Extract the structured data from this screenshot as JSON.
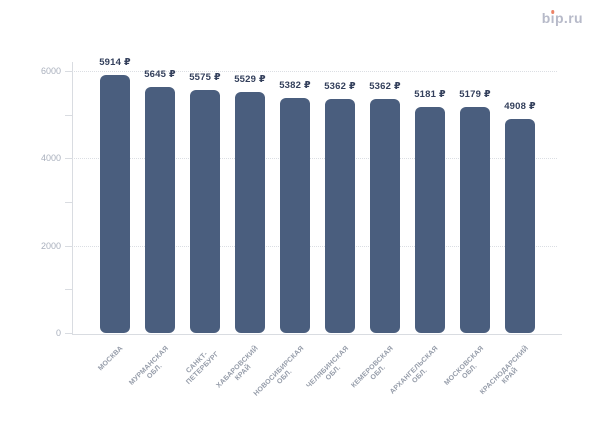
{
  "logo": {
    "text": "bip.ru"
  },
  "chart_data": {
    "type": "bar",
    "title": "",
    "xlabel": "",
    "ylabel": "",
    "unit": "₽",
    "categories": [
      "МОСКВА",
      "МУРМАНСКАЯ ОБЛ.",
      "САНКТ-ПЕТЕРБУРГ",
      "ХАБАРОВСКИЙ КРАЙ",
      "НОВОСИБИРСКАЯ ОБЛ.",
      "ЧЕЛЯБИНСКАЯ ОБЛ.",
      "КЕМЕРОВСКАЯ ОБЛ.",
      "АРХАНГЕЛЬСКАЯ ОБЛ.",
      "МОСКОВСКАЯ ОБЛ.",
      "КРАСНОДАРСКИЙ КРАЙ"
    ],
    "category_lines": [
      [
        "МОСКВА"
      ],
      [
        "МУРМАНСКАЯ",
        "ОБЛ."
      ],
      [
        "САНКТ-",
        "ПЕТЕРБУРГ"
      ],
      [
        "ХАБАРОВСКИЙ",
        "КРАЙ"
      ],
      [
        "НОВОСИБИРСКАЯ",
        "ОБЛ."
      ],
      [
        "ЧЕЛЯБИНСКАЯ",
        "ОБЛ."
      ],
      [
        "КЕМЕРОВСКАЯ",
        "ОБЛ."
      ],
      [
        "АРХАНГЕЛЬСКАЯ",
        "ОБЛ."
      ],
      [
        "МОСКОВСКАЯ",
        "ОБЛ."
      ],
      [
        "КРАСНОДАРСКИЙ",
        "КРАЙ"
      ]
    ],
    "values": [
      5914,
      5645,
      5575,
      5529,
      5382,
      5362,
      5362,
      5181,
      5179,
      4908
    ],
    "value_labels": [
      "5914 ₽",
      "5645 ₽",
      "5575 ₽",
      "5529 ₽",
      "5382 ₽",
      "5362 ₽",
      "5362 ₽",
      "5181 ₽",
      "5179 ₽",
      "4908 ₽"
    ],
    "ylim": [
      0,
      6200
    ],
    "yticks_labeled": [
      0,
      2000,
      4000,
      6000
    ],
    "yticks_minor": [
      1000,
      3000,
      5000
    ],
    "gridlines_at": [
      2000,
      4000,
      6000
    ],
    "grid_style": "dotted horizontal",
    "legend": null,
    "colors": {
      "bar": "#4a5e7e",
      "value_label": "#34405c",
      "y_tick_label": "#a9b0bd",
      "x_category_label": "#959ca9",
      "gridline": "#dbdee3",
      "axis_line": "#d9dce1",
      "logo": "#b7bac9",
      "logo_dot": "#ec8266",
      "background": "#ffffff"
    }
  }
}
